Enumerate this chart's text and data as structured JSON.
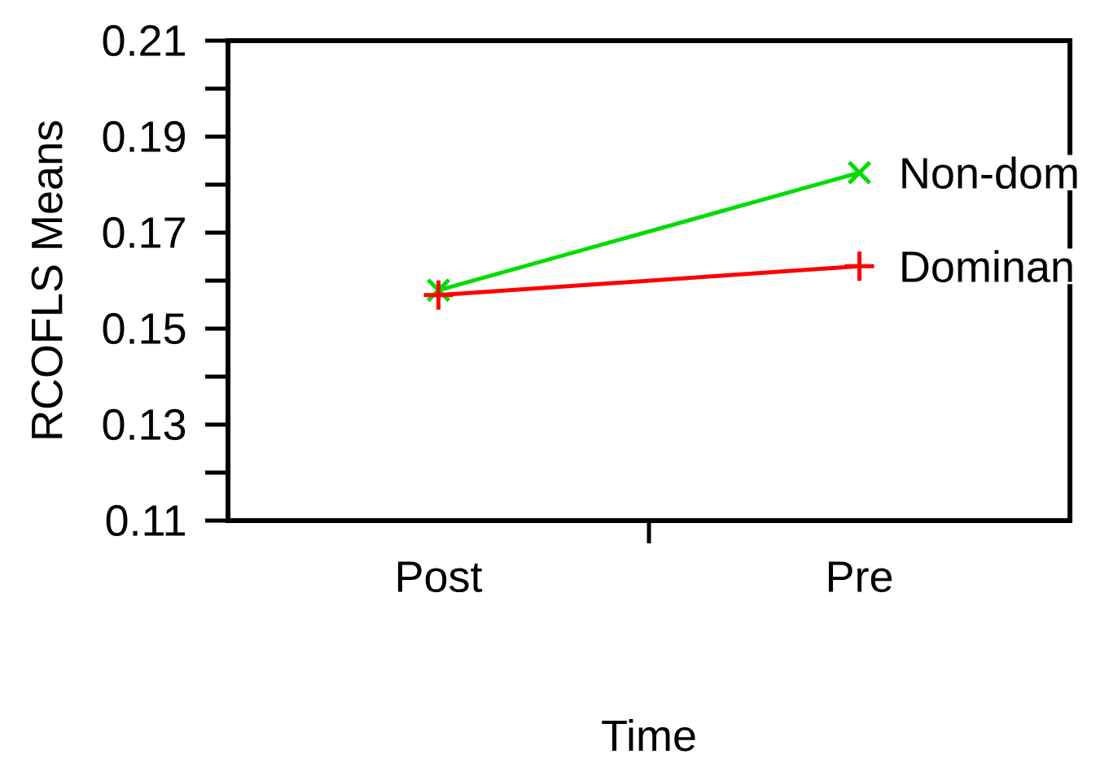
{
  "chart_data": {
    "type": "line",
    "xlabel": "Time",
    "ylabel": "RCOFLS Means",
    "categories": [
      "Post",
      "Pre"
    ],
    "series": [
      {
        "name": "Non-dom",
        "color": "#00dd00",
        "values": [
          0.158,
          0.1825
        ],
        "marker": "cross"
      },
      {
        "name": "Dominan",
        "color": "#ff0000",
        "values": [
          0.157,
          0.163
        ],
        "marker": "plus"
      }
    ],
    "ylim": [
      0.11,
      0.21
    ],
    "yticks": [
      0.11,
      {
        "value": 0.12,
        "label": null
      },
      0.13,
      {
        "value": 0.14,
        "label": null
      },
      0.15,
      {
        "value": 0.16,
        "label": null
      },
      0.17,
      {
        "value": 0.18,
        "label": null
      },
      0.19,
      {
        "value": 0.2,
        "label": null
      },
      0.21
    ],
    "grid": false,
    "legend": false,
    "line_style": "solid"
  }
}
